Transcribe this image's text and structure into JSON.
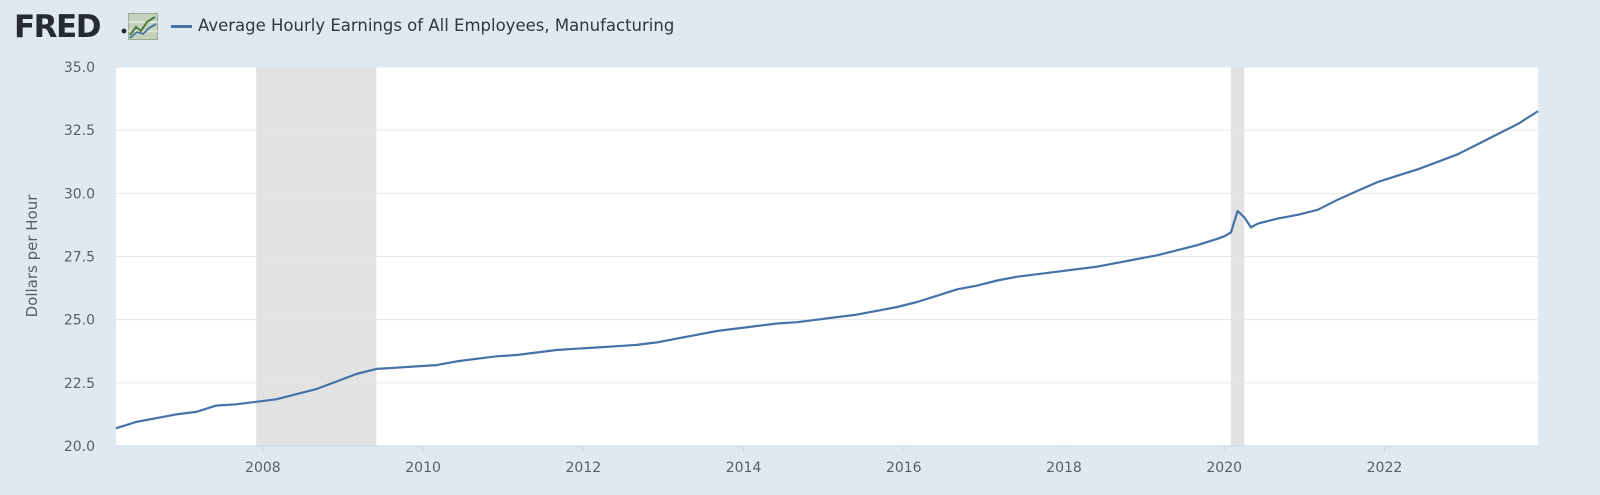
{
  "header": {
    "logo_text": "FRED",
    "logo_icon": "fred-chart-icon",
    "series_title": "Average Hourly Earnings of All Employees, Manufacturing"
  },
  "colors": {
    "background": "#e1e9f0",
    "plot_background": "#ffffff",
    "line": "#4572a7",
    "recession": "#e2e2e2",
    "grid": "#e6e6e6"
  },
  "chart_data": {
    "type": "line",
    "title": "",
    "xlabel": "",
    "ylabel": "Dollars per Hour",
    "ylim": [
      20.0,
      35.0
    ],
    "yticks": [
      "20.0",
      "22.5",
      "25.0",
      "27.5",
      "30.0",
      "32.5",
      "35.0"
    ],
    "xlim": [
      "2006-03",
      "2023-12"
    ],
    "xticks": [
      "2008",
      "2010",
      "2012",
      "2014",
      "2016",
      "2018",
      "2020",
      "2022"
    ],
    "grid": true,
    "recessions": [
      {
        "start": "2007-12",
        "end": "2009-06"
      },
      {
        "start": "2020-02",
        "end": "2020-04"
      }
    ],
    "series": [
      {
        "name": "Average Hourly Earnings of All Employees, Manufacturing",
        "x": [
          "2006-03",
          "2006-06",
          "2006-09",
          "2006-12",
          "2007-03",
          "2007-06",
          "2007-09",
          "2007-12",
          "2008-03",
          "2008-06",
          "2008-09",
          "2008-12",
          "2009-03",
          "2009-06",
          "2009-09",
          "2009-12",
          "2010-03",
          "2010-06",
          "2010-09",
          "2010-12",
          "2011-03",
          "2011-06",
          "2011-09",
          "2011-12",
          "2012-03",
          "2012-06",
          "2012-09",
          "2012-12",
          "2013-03",
          "2013-06",
          "2013-09",
          "2013-12",
          "2014-03",
          "2014-06",
          "2014-09",
          "2014-12",
          "2015-03",
          "2015-06",
          "2015-09",
          "2015-12",
          "2016-03",
          "2016-06",
          "2016-09",
          "2016-12",
          "2017-03",
          "2017-06",
          "2017-09",
          "2017-12",
          "2018-03",
          "2018-06",
          "2018-09",
          "2018-12",
          "2019-03",
          "2019-06",
          "2019-09",
          "2019-12",
          "2020-01",
          "2020-02",
          "2020-03",
          "2020-04",
          "2020-05",
          "2020-06",
          "2020-09",
          "2020-12",
          "2021-03",
          "2021-06",
          "2021-09",
          "2021-12",
          "2022-03",
          "2022-06",
          "2022-09",
          "2022-12",
          "2023-03",
          "2023-06",
          "2023-09",
          "2023-12"
        ],
        "values": [
          20.7,
          20.95,
          21.1,
          21.25,
          21.35,
          21.6,
          21.65,
          21.75,
          21.85,
          22.05,
          22.25,
          22.55,
          22.85,
          23.05,
          23.1,
          23.15,
          23.2,
          23.35,
          23.45,
          23.55,
          23.6,
          23.7,
          23.8,
          23.85,
          23.9,
          23.95,
          24.0,
          24.1,
          24.25,
          24.4,
          24.55,
          24.65,
          24.75,
          24.85,
          24.9,
          25.0,
          25.1,
          25.2,
          25.35,
          25.5,
          25.7,
          25.95,
          26.2,
          26.35,
          26.55,
          26.7,
          26.8,
          26.9,
          27.0,
          27.1,
          27.25,
          27.4,
          27.55,
          27.75,
          27.95,
          28.2,
          28.3,
          28.45,
          29.3,
          29.05,
          28.65,
          28.8,
          29.0,
          29.15,
          29.35,
          29.75,
          30.1,
          30.45,
          30.7,
          30.95,
          31.25,
          31.55,
          31.95,
          32.35,
          32.75,
          33.25
        ]
      }
    ]
  }
}
